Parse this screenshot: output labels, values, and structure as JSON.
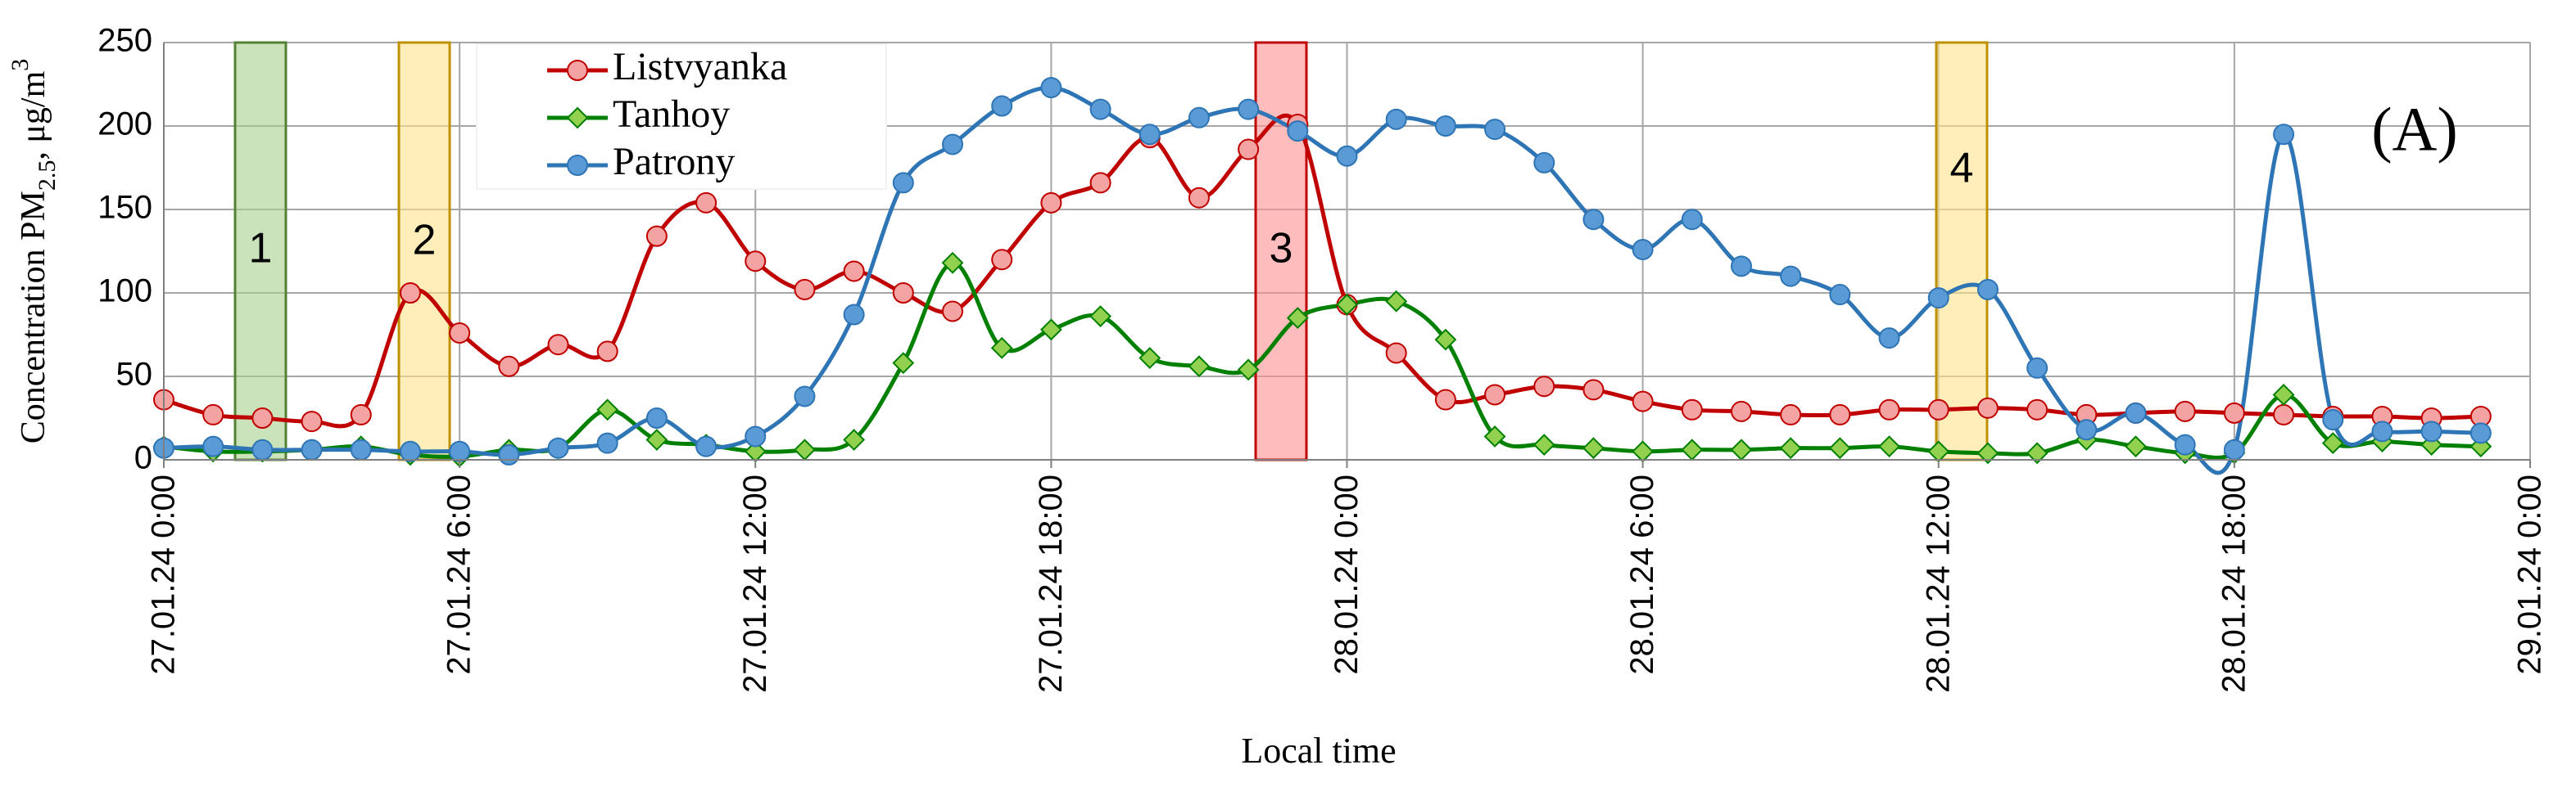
{
  "chart_data": {
    "type": "line",
    "x": [
      "27.01.24 0:00",
      "27.01.24 1:00",
      "27.01.24 2:00",
      "27.01.24 3:00",
      "27.01.24 4:00",
      "27.01.24 5:00",
      "27.01.24 6:00",
      "27.01.24 7:00",
      "27.01.24 8:00",
      "27.01.24 9:00",
      "27.01.24 10:00",
      "27.01.24 11:00",
      "27.01.24 12:00",
      "27.01.24 13:00",
      "27.01.24 14:00",
      "27.01.24 15:00",
      "27.01.24 16:00",
      "27.01.24 17:00",
      "27.01.24 18:00",
      "27.01.24 19:00",
      "27.01.24 20:00",
      "27.01.24 21:00",
      "27.01.24 22:00",
      "27.01.24 23:00",
      "28.01.24 0:00",
      "28.01.24 1:00",
      "28.01.24 2:00",
      "28.01.24 3:00",
      "28.01.24 4:00",
      "28.01.24 5:00",
      "28.01.24 6:00",
      "28.01.24 7:00",
      "28.01.24 8:00",
      "28.01.24 9:00",
      "28.01.24 10:00",
      "28.01.24 11:00",
      "28.01.24 12:00",
      "28.01.24 13:00",
      "28.01.24 14:00",
      "28.01.24 15:00",
      "28.01.24 16:00",
      "28.01.24 17:00",
      "28.01.24 18:00",
      "28.01.24 19:00",
      "28.01.24 20:00",
      "28.01.24 21:00",
      "28.01.24 22:00",
      "28.01.24 23:00"
    ],
    "series": [
      {
        "name": "Listvyanka",
        "color": "#c00000",
        "marker_color": "#f4a3a3",
        "marker": "circle",
        "values": [
          36,
          27,
          25,
          23,
          27,
          100,
          76,
          56,
          69,
          65,
          134,
          154,
          119,
          102,
          113,
          100,
          89,
          120,
          154,
          166,
          193,
          157,
          186,
          201,
          93,
          64,
          36,
          39,
          44,
          42,
          35,
          30,
          29,
          27,
          27,
          30,
          30,
          31,
          30,
          27,
          28,
          29,
          28,
          27,
          26,
          26,
          25,
          26
        ]
      },
      {
        "name": "Tanhoy",
        "color": "#008000",
        "marker_color": "#92d050",
        "marker": "diamond",
        "values": [
          8,
          5,
          5,
          6,
          8,
          3,
          2,
          6,
          7,
          30,
          12,
          9,
          5,
          6,
          12,
          58,
          118,
          67,
          78,
          86,
          61,
          56,
          54,
          85,
          93,
          95,
          72,
          14,
          9,
          7,
          5,
          6,
          6,
          7,
          7,
          8,
          5,
          4,
          4,
          12,
          8,
          4,
          4,
          39,
          10,
          11,
          9,
          8
        ]
      },
      {
        "name": "Patrony",
        "color": "#2e75b6",
        "marker_color": "#5b9bd5",
        "marker": "circle",
        "values": [
          7,
          8,
          6,
          6,
          6,
          5,
          5,
          3,
          7,
          10,
          25,
          8,
          14,
          38,
          87,
          166,
          189,
          212,
          223,
          210,
          195,
          205,
          210,
          197,
          182,
          204,
          200,
          198,
          178,
          144,
          126,
          144,
          116,
          110,
          99,
          73,
          97,
          102,
          55,
          18,
          28,
          9,
          6,
          195,
          24,
          17,
          17,
          16
        ]
      }
    ],
    "xlim": [
      "27.01.24 0:00",
      "29.01.24 0:00"
    ],
    "xticks": [
      "27.01.24 0:00",
      "27.01.24 6:00",
      "27.01.24 12:00",
      "27.01.24 18:00",
      "28.01.24 0:00",
      "28.01.24 6:00",
      "28.01.24 12:00",
      "28.01.24 18:00",
      "29.01.24 0:00"
    ],
    "ylim": [
      0,
      250
    ],
    "yticks": [
      0,
      50,
      100,
      150,
      200,
      250
    ],
    "grid": true,
    "legend": "upper left",
    "xlabel": "Local time",
    "ylabel": {
      "text": "Concentration PM",
      "sub": "2.5",
      "rest": ", μg/m",
      "sup": "3"
    },
    "panel_label": "(A)",
    "annotations": [
      {
        "label": "1",
        "color": "#a9d18e",
        "edge": "#548235"
      },
      {
        "label": "2",
        "color": "#ffe38a",
        "edge": "#bf9000"
      },
      {
        "label": "3",
        "color": "#ff9090",
        "edge": "#c00000"
      },
      {
        "label": "4",
        "color": "#ffe38a",
        "edge": "#bf9000"
      }
    ]
  }
}
